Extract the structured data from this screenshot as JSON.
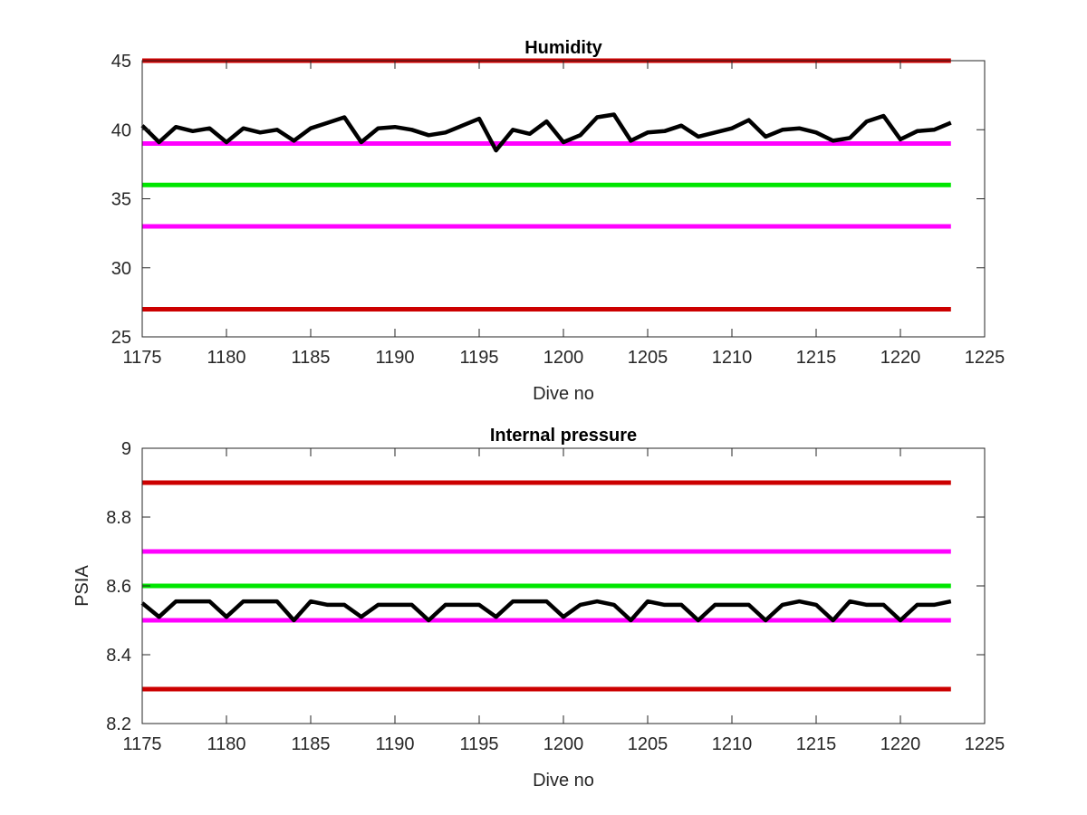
{
  "chart_data": [
    {
      "type": "line",
      "title": "Humidity",
      "xlabel": "Dive no",
      "ylabel": "",
      "xlim": [
        1175,
        1225
      ],
      "ylim": [
        25,
        45
      ],
      "xticks": [
        1175,
        1180,
        1185,
        1190,
        1195,
        1200,
        1205,
        1210,
        1215,
        1220,
        1225
      ],
      "yticks": [
        25,
        30,
        35,
        40,
        45
      ],
      "grid": false,
      "x": [
        1175,
        1176,
        1177,
        1178,
        1179,
        1180,
        1181,
        1182,
        1183,
        1184,
        1185,
        1186,
        1187,
        1188,
        1189,
        1190,
        1191,
        1192,
        1193,
        1194,
        1195,
        1196,
        1197,
        1198,
        1199,
        1200,
        1201,
        1202,
        1203,
        1204,
        1205,
        1206,
        1207,
        1208,
        1209,
        1210,
        1211,
        1212,
        1213,
        1214,
        1215,
        1216,
        1217,
        1218,
        1219,
        1220,
        1221,
        1222,
        1223
      ],
      "series": [
        {
          "color": "#000000",
          "values": [
            40.3,
            39.1,
            40.2,
            39.9,
            40.1,
            39.1,
            40.1,
            39.8,
            40.0,
            39.2,
            40.1,
            40.5,
            40.9,
            39.1,
            40.1,
            40.2,
            40.0,
            39.6,
            39.8,
            40.3,
            40.8,
            38.5,
            40.0,
            39.7,
            40.6,
            39.1,
            39.6,
            40.9,
            41.1,
            39.2,
            39.8,
            39.9,
            40.3,
            39.5,
            39.8,
            40.1,
            40.7,
            39.5,
            40.0,
            40.1,
            39.8,
            39.2,
            39.4,
            40.6,
            41.0,
            39.3,
            39.9,
            40.0,
            40.5
          ]
        }
      ],
      "reference_lines": [
        {
          "value": 45,
          "color": "#cc0000",
          "x_range": [
            1175,
            1223
          ]
        },
        {
          "value": 39,
          "color": "#ff00ff",
          "x_range": [
            1175,
            1223
          ]
        },
        {
          "value": 36,
          "color": "#00e600",
          "x_range": [
            1175,
            1223
          ]
        },
        {
          "value": 33,
          "color": "#ff00ff",
          "x_range": [
            1175,
            1223
          ]
        },
        {
          "value": 27,
          "color": "#cc0000",
          "x_range": [
            1175,
            1223
          ]
        }
      ]
    },
    {
      "type": "line",
      "title": "Internal pressure",
      "xlabel": "Dive no",
      "ylabel": "PSIA",
      "xlim": [
        1175,
        1225
      ],
      "ylim": [
        8.2,
        9.0
      ],
      "xticks": [
        1175,
        1180,
        1185,
        1190,
        1195,
        1200,
        1205,
        1210,
        1215,
        1220,
        1225
      ],
      "yticks": [
        "8.2",
        "8.4",
        "8.6",
        "8.8",
        "9"
      ],
      "grid": false,
      "x": [
        1175,
        1176,
        1177,
        1178,
        1179,
        1180,
        1181,
        1182,
        1183,
        1184,
        1185,
        1186,
        1187,
        1188,
        1189,
        1190,
        1191,
        1192,
        1193,
        1194,
        1195,
        1196,
        1197,
        1198,
        1199,
        1200,
        1201,
        1202,
        1203,
        1204,
        1205,
        1206,
        1207,
        1208,
        1209,
        1210,
        1211,
        1212,
        1213,
        1214,
        1215,
        1216,
        1217,
        1218,
        1219,
        1220,
        1221,
        1222,
        1223
      ],
      "series": [
        {
          "color": "#000000",
          "values": [
            8.55,
            8.51,
            8.555,
            8.555,
            8.555,
            8.51,
            8.555,
            8.555,
            8.555,
            8.5,
            8.555,
            8.545,
            8.545,
            8.51,
            8.545,
            8.545,
            8.545,
            8.5,
            8.545,
            8.545,
            8.545,
            8.51,
            8.555,
            8.555,
            8.555,
            8.51,
            8.545,
            8.555,
            8.545,
            8.5,
            8.555,
            8.545,
            8.545,
            8.5,
            8.545,
            8.545,
            8.545,
            8.5,
            8.545,
            8.555,
            8.545,
            8.5,
            8.555,
            8.545,
            8.545,
            8.5,
            8.545,
            8.545,
            8.555
          ]
        }
      ],
      "reference_lines": [
        {
          "value": 8.9,
          "color": "#cc0000",
          "x_range": [
            1175,
            1223
          ]
        },
        {
          "value": 8.7,
          "color": "#ff00ff",
          "x_range": [
            1175,
            1223
          ]
        },
        {
          "value": 8.6,
          "color": "#00e600",
          "x_range": [
            1175,
            1223
          ]
        },
        {
          "value": 8.5,
          "color": "#ff00ff",
          "x_range": [
            1175,
            1223
          ]
        },
        {
          "value": 8.3,
          "color": "#cc0000",
          "x_range": [
            1175,
            1223
          ]
        }
      ]
    }
  ]
}
